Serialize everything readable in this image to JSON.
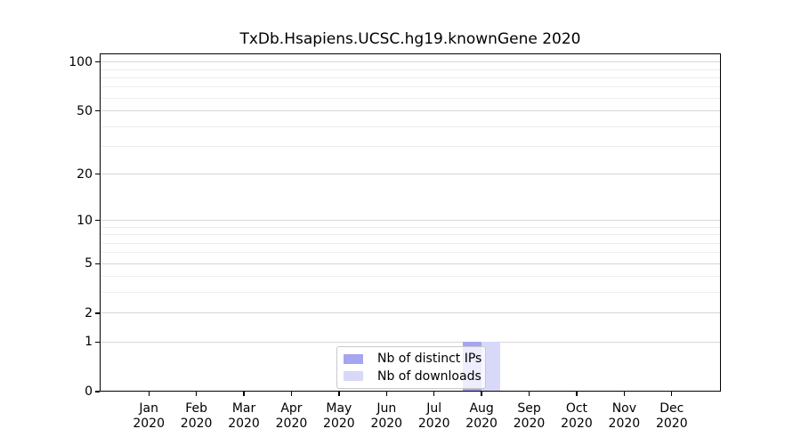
{
  "chart_data": {
    "type": "bar",
    "title": "TxDb.Hsapiens.UCSC.hg19.knownGene 2020",
    "categories": [
      "Jan 2020",
      "Feb 2020",
      "Mar 2020",
      "Apr 2020",
      "May 2020",
      "Jun 2020",
      "Jul 2020",
      "Aug 2020",
      "Sep 2020",
      "Oct 2020",
      "Nov 2020",
      "Dec 2020"
    ],
    "series": [
      {
        "name": "Nb of distinct IPs",
        "color": "#a5a5f2",
        "values": [
          0,
          0,
          0,
          0,
          0,
          0,
          0,
          1,
          0,
          0,
          0,
          0
        ]
      },
      {
        "name": "Nb of downloads",
        "color": "#d8d8f9",
        "values": [
          0,
          0,
          0,
          0,
          0,
          0,
          0,
          1,
          0,
          0,
          0,
          0
        ]
      }
    ],
    "xlabel": "",
    "ylabel": "",
    "yscale": "log1p",
    "ylim": [
      0,
      113
    ],
    "yticks": [
      0,
      1,
      2,
      5,
      10,
      20,
      50,
      100
    ],
    "minor_gridlines": [
      3,
      4,
      6,
      7,
      8,
      9,
      30,
      40,
      60,
      70,
      80,
      90
    ],
    "grid": true,
    "grid_color_major": "#d6d6d6",
    "grid_color_minor": "#ededed",
    "legend_position": "lower center"
  }
}
